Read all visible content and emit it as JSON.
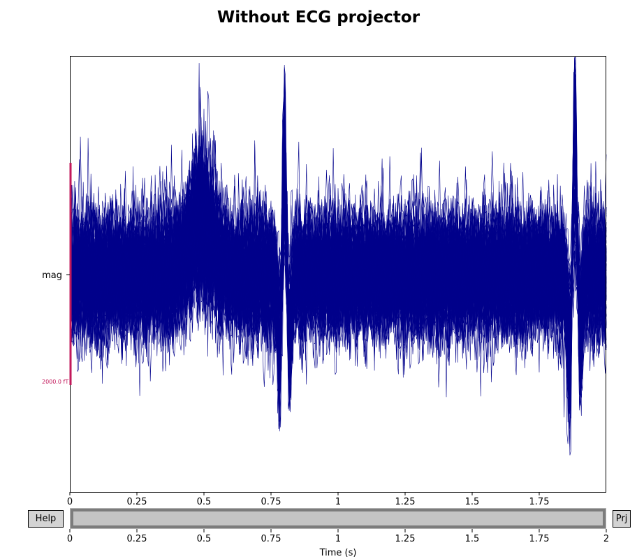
{
  "title": "Without ECG projector",
  "buttons": {
    "help": "Help",
    "projectors": "Prj"
  },
  "scale_bar_label": "2000.0 fT",
  "colors": {
    "trace": "#00008b",
    "scale_bar": "#c2185b",
    "scroll_thumb": "#c4c4c4",
    "scroll_border": "#7c7c7c"
  },
  "scrollbar": {
    "start_s": 0,
    "end_s": 2,
    "total_s": 2
  },
  "chart_data": [
    {
      "type": "line",
      "title": "Without ECG projector",
      "xlabel": "",
      "ylabel": "",
      "xlim": [
        0,
        2
      ],
      "x_ticks": [
        0,
        0.25,
        0.5,
        0.75,
        1,
        1.25,
        1.5,
        1.75
      ],
      "x_tick_labels": [
        "0",
        "0.25",
        "0.5",
        "0.75",
        "1",
        "1.25",
        "1.5",
        "1.75"
      ],
      "channel_labels": [
        "mag"
      ],
      "num_traces": 102,
      "peaks": [
        {
          "t": 0.8,
          "amplitude": 1.5,
          "width": 0.008
        },
        {
          "t": 1.883,
          "amplitude": 1.55,
          "width": 0.008
        },
        {
          "t": 0.49,
          "amplitude": 0.65,
          "width": 0.045
        },
        {
          "t": 0.785,
          "amplitude": -0.75,
          "width": 0.01
        },
        {
          "t": 0.815,
          "amplitude": -0.7,
          "width": 0.01
        },
        {
          "t": 1.865,
          "amplitude": -0.8,
          "width": 0.01
        },
        {
          "t": 1.9,
          "amplitude": -0.7,
          "width": 0.01
        }
      ],
      "grid": false,
      "legend": "none"
    },
    {
      "type": "line",
      "xlabel": "Time (s)",
      "xlim": [
        0,
        2
      ],
      "x_ticks": [
        0,
        0.25,
        0.5,
        0.75,
        1,
        1.25,
        1.5,
        1.75,
        2
      ],
      "x_tick_labels": [
        "0",
        "0.25",
        "0.5",
        "0.75",
        "1",
        "1.25",
        "1.5",
        "1.75",
        "2"
      ]
    }
  ]
}
